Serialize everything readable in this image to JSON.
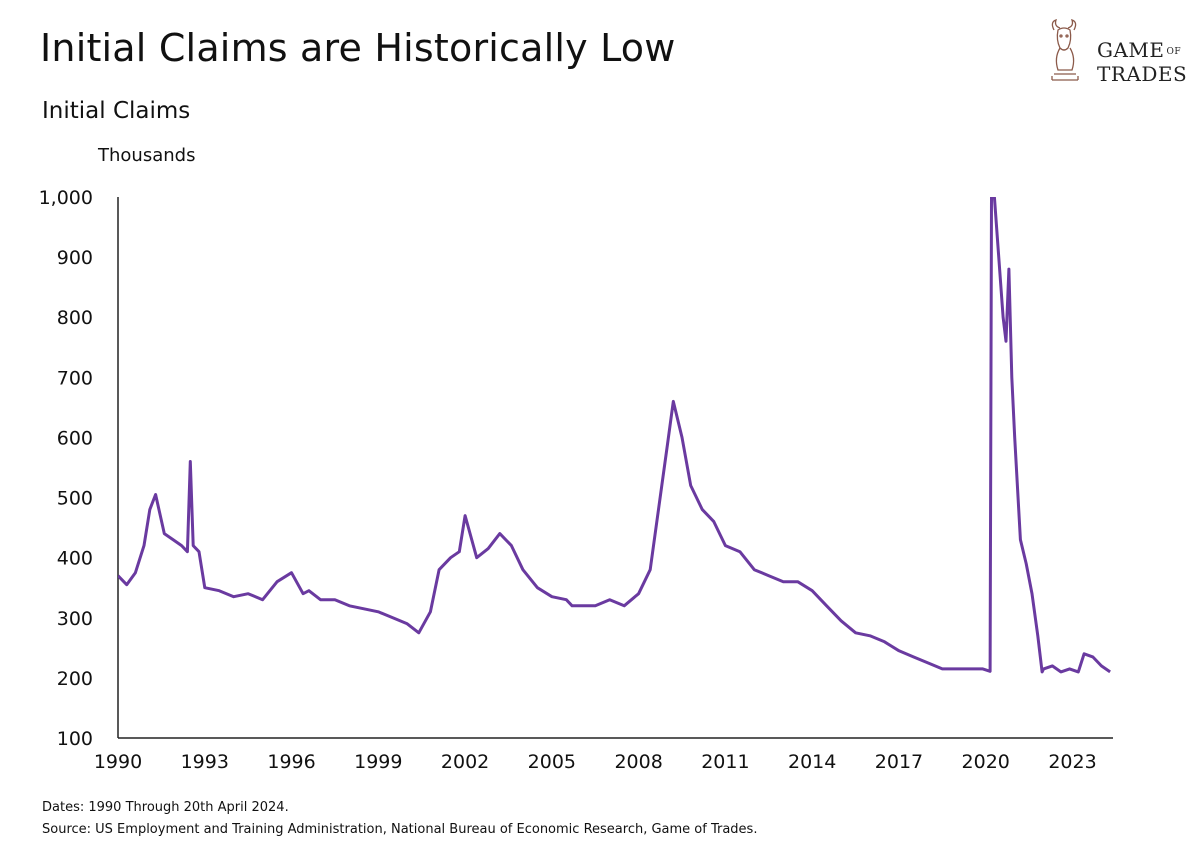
{
  "title": "Initial Claims are Historically Low",
  "subtitle": "Initial Claims",
  "unit_label": "Thousands",
  "logo": {
    "line1": "GAME",
    "line1_small": "OF",
    "line2": "TRADES"
  },
  "footnotes": {
    "dates": "Dates: 1990 Through 20th April 2024.",
    "source": "Source: US Employment and Training Administration, National Bureau of Economic Research, Game of Trades."
  },
  "colors": {
    "line": "#6a3aa0",
    "axis": "#222222",
    "logo": "#8b5a4a"
  },
  "chart_data": {
    "type": "line",
    "title": "Initial Claims",
    "ylabel": "Thousands",
    "xlabel": "",
    "xlim": [
      1990,
      2024.4
    ],
    "ylim": [
      100,
      1000
    ],
    "grid": false,
    "x_ticks": [
      "1990",
      "1993",
      "1996",
      "1999",
      "2002",
      "2005",
      "2008",
      "2011",
      "2014",
      "2017",
      "2020",
      "2023"
    ],
    "y_ticks": [
      "100",
      "200",
      "300",
      "400",
      "500",
      "600",
      "700",
      "800",
      "900",
      "1,000"
    ],
    "series": [
      {
        "x": [
          1990.0,
          1990.3,
          1990.6,
          1990.9,
          1991.1,
          1991.3,
          1991.6,
          1991.9,
          1992.2,
          1992.4,
          1992.5,
          1992.6,
          1992.8,
          1993.0,
          1993.5,
          1994.0,
          1994.5,
          1995.0,
          1995.5,
          1996.0,
          1996.4,
          1996.6,
          1997.0,
          1997.5,
          1998.0,
          1998.5,
          1999.0,
          1999.5,
          2000.0,
          2000.4,
          2000.8,
          2001.1,
          2001.5,
          2001.8,
          2002.0,
          2002.4,
          2002.8,
          2003.2,
          2003.6,
          2004.0,
          2004.5,
          2005.0,
          2005.5,
          2005.7,
          2006.0,
          2006.5,
          2007.0,
          2007.5,
          2008.0,
          2008.4,
          2008.8,
          2009.0,
          2009.2,
          2009.5,
          2009.8,
          2010.2,
          2010.6,
          2011.0,
          2011.5,
          2012.0,
          2012.5,
          2013.0,
          2013.5,
          2014.0,
          2014.5,
          2015.0,
          2015.5,
          2016.0,
          2016.5,
          2017.0,
          2017.5,
          2018.0,
          2018.5,
          2019.0,
          2019.5,
          2019.9,
          2020.15,
          2020.2,
          2020.3,
          2020.6,
          2020.7,
          2020.8,
          2020.9,
          2021.0,
          2021.2,
          2021.4,
          2021.6,
          2021.8,
          2021.95,
          2022.0,
          2022.3,
          2022.6,
          2022.9,
          2023.2,
          2023.4,
          2023.7,
          2024.0,
          2024.3
        ],
        "values": [
          370,
          355,
          375,
          420,
          480,
          505,
          440,
          430,
          420,
          410,
          560,
          420,
          410,
          350,
          345,
          335,
          340,
          330,
          360,
          375,
          340,
          345,
          330,
          330,
          320,
          315,
          310,
          300,
          290,
          275,
          310,
          380,
          400,
          410,
          470,
          400,
          415,
          440,
          420,
          380,
          350,
          335,
          330,
          320,
          320,
          320,
          330,
          320,
          340,
          380,
          520,
          590,
          660,
          600,
          520,
          480,
          460,
          420,
          410,
          380,
          370,
          360,
          360,
          345,
          320,
          295,
          275,
          270,
          260,
          245,
          235,
          225,
          215,
          215,
          215,
          215,
          211,
          1000,
          1000,
          800,
          760,
          880,
          700,
          600,
          430,
          390,
          340,
          270,
          210,
          215,
          220,
          210,
          215,
          210,
          240,
          235,
          220,
          210
        ]
      }
    ]
  }
}
